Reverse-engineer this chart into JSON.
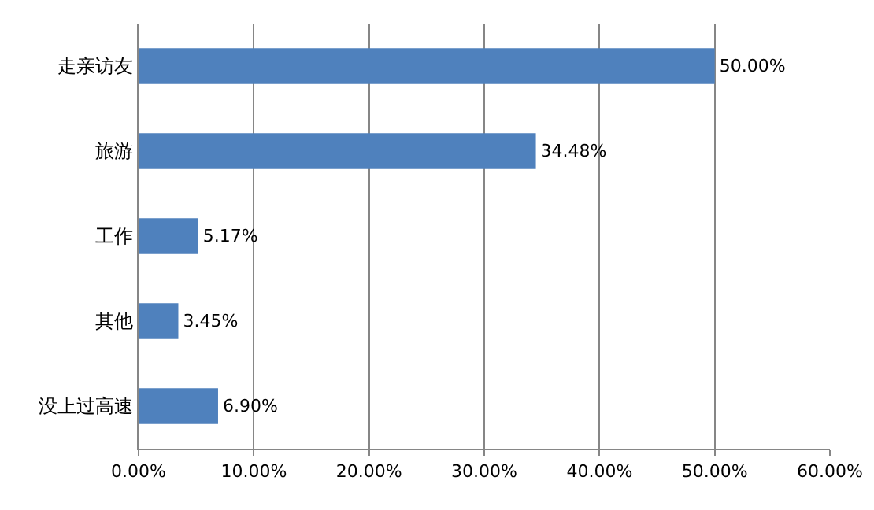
{
  "chart_data": {
    "type": "bar",
    "orientation": "horizontal",
    "categories": [
      "走亲访友",
      "旅游",
      "工作",
      "其他",
      "没上过高速"
    ],
    "values": [
      50,
      34.48,
      5.17,
      3.45,
      6.9
    ],
    "value_labels": [
      "50.00%",
      "34.48%",
      "5.17%",
      "3.45%",
      "6.90%"
    ],
    "color": "#4f81bd",
    "xlim": [
      0,
      60
    ],
    "xticks": [
      {
        "value": 0,
        "label": "0.00%"
      },
      {
        "value": 10,
        "label": "10.00%"
      },
      {
        "value": 20,
        "label": "20.00%"
      },
      {
        "value": 30,
        "label": "30.00%"
      },
      {
        "value": 40,
        "label": "40.00%"
      },
      {
        "value": 50,
        "label": "50.00%"
      },
      {
        "value": 60,
        "label": "60.00%"
      }
    ],
    "grid": "x",
    "legend": false
  }
}
